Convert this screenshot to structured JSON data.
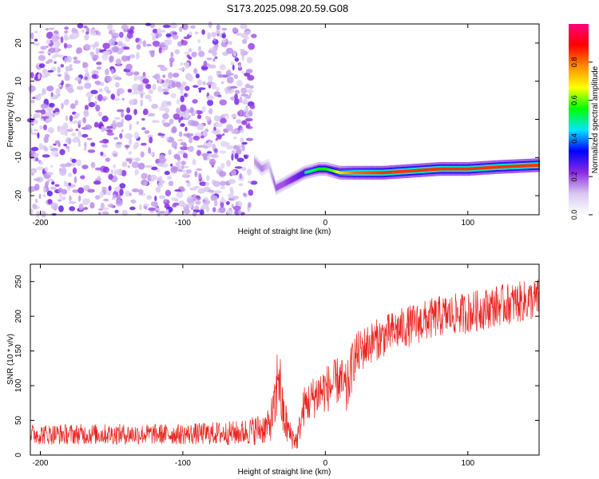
{
  "title": "S173.2025.098.20.59.G08",
  "chart_data": [
    {
      "type": "heatmap",
      "xlabel": "Height of straight line (km)",
      "ylabel": "Frequency (Hz)",
      "xlim": [
        -207,
        150
      ],
      "ylim": [
        -25,
        25
      ],
      "xticks": [
        -200,
        -100,
        0,
        100
      ],
      "yticks": [
        -20,
        -10,
        0,
        10,
        20
      ],
      "colorbar": {
        "label": "Normalized spectral amplitude",
        "range": [
          0,
          1
        ],
        "ticks": [
          0.0,
          0.2,
          0.4,
          0.6,
          0.8
        ],
        "tick_labels": [
          "0.0",
          "0.2",
          "0.4",
          "0.6",
          "0.8"
        ],
        "colors": [
          "#ffffff",
          "#d8c8f0",
          "#8a2be2",
          "#0000ff",
          "#00e5ff",
          "#00ff00",
          "#ffff00",
          "#ff8c00",
          "#ff0000",
          "#ff0080"
        ]
      },
      "noise_region_x": [
        -207,
        -50
      ],
      "signal_track": {
        "x": [
          -50,
          -45,
          -40,
          -35,
          -30,
          -25,
          -20,
          -15,
          -10,
          -5,
          0,
          5,
          10,
          20,
          40,
          60,
          80,
          100,
          120,
          150
        ],
        "freq": [
          -11,
          -13,
          -12,
          -18,
          -17,
          -16,
          -15,
          -14,
          -13.5,
          -13,
          -13,
          -13.5,
          -14,
          -14,
          -14,
          -13.5,
          -13,
          -13,
          -12.5,
          -12
        ],
        "amplitude": [
          0.25,
          0.3,
          0.2,
          0.35,
          0.35,
          0.4,
          0.45,
          0.5,
          0.5,
          0.55,
          0.55,
          0.6,
          0.7,
          0.8,
          0.85,
          0.85,
          0.85,
          0.85,
          0.85,
          0.85
        ]
      },
      "grid": false
    },
    {
      "type": "line",
      "xlabel": "Height of straight line (km)",
      "ylabel": "SNR (10 * v/v)",
      "xlim": [
        -207,
        150
      ],
      "ylim": [
        0,
        275
      ],
      "xticks": [
        -200,
        -100,
        0,
        100
      ],
      "yticks": [
        0,
        50,
        100,
        150,
        200,
        250
      ],
      "color": "#e8231e",
      "envelope": {
        "x": [
          -207,
          -180,
          -150,
          -100,
          -60,
          -40,
          -35,
          -33,
          -30,
          -25,
          -20,
          -15,
          -10,
          -5,
          0,
          5,
          10,
          15,
          20,
          30,
          50,
          80,
          100,
          120,
          150
        ],
        "mean": [
          30,
          30,
          30,
          30,
          32,
          40,
          70,
          130,
          60,
          30,
          20,
          70,
          80,
          90,
          95,
          100,
          110,
          90,
          140,
          160,
          180,
          200,
          205,
          215,
          225
        ],
        "spread": [
          15,
          15,
          15,
          15,
          18,
          25,
          40,
          60,
          40,
          20,
          15,
          30,
          30,
          35,
          35,
          35,
          35,
          40,
          35,
          30,
          30,
          30,
          30,
          30,
          30
        ]
      },
      "grid": false
    }
  ]
}
